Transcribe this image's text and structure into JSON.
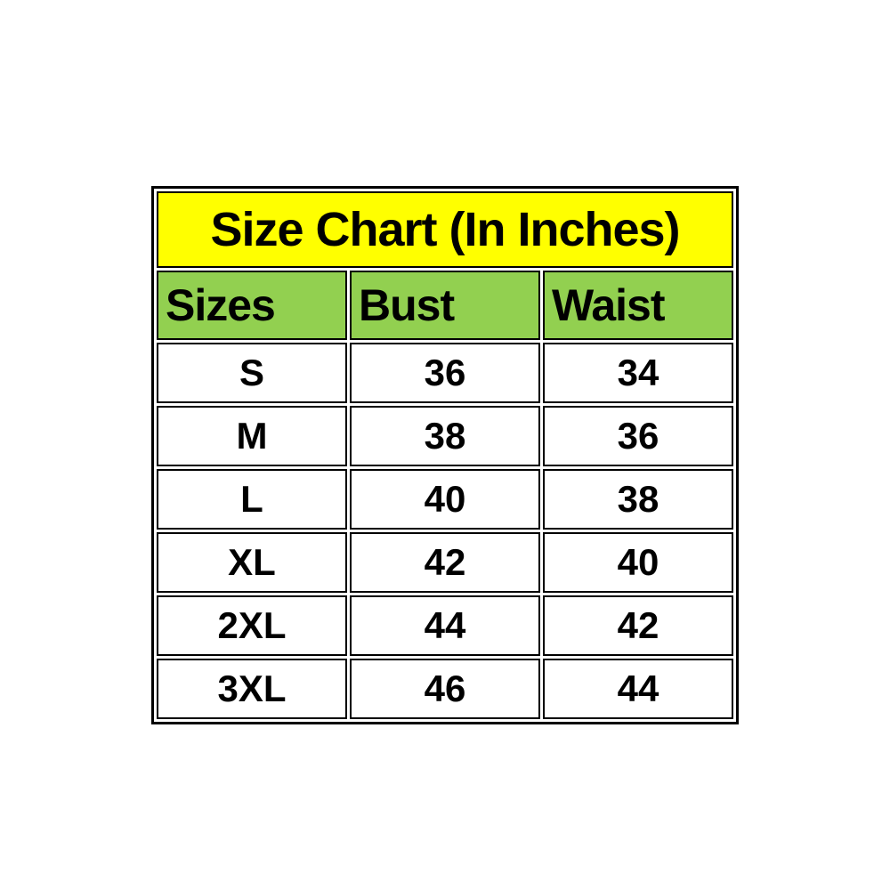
{
  "title": "Size Chart (In Inches)",
  "colors": {
    "title_bg": "#FFFF00",
    "header_bg": "#92D050",
    "border": "#000000",
    "text": "#000000",
    "page_bg": "#FFFFFF"
  },
  "chart_data": {
    "type": "table",
    "title": "Size Chart (In Inches)",
    "columns": [
      "Sizes",
      "Bust",
      "Waist"
    ],
    "rows": [
      {
        "size": "S",
        "bust": "36",
        "waist": "34"
      },
      {
        "size": "M",
        "bust": "38",
        "waist": "36"
      },
      {
        "size": "L",
        "bust": "40",
        "waist": "38"
      },
      {
        "size": "XL",
        "bust": "42",
        "waist": "40"
      },
      {
        "size": "2XL",
        "bust": "44",
        "waist": "42"
      },
      {
        "size": "3XL",
        "bust": "46",
        "waist": "44"
      }
    ]
  }
}
